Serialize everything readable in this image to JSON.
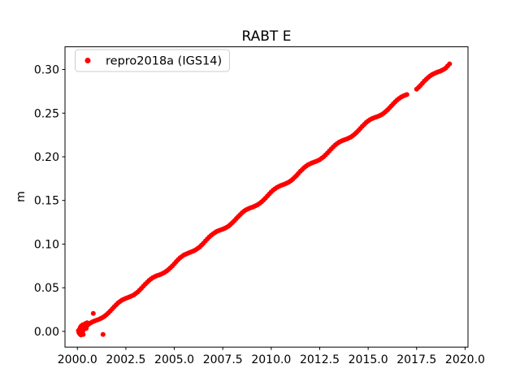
{
  "window": {
    "background": "#ffffff"
  },
  "chart_data": {
    "type": "scatter",
    "title": "RABT E",
    "xlabel": "",
    "ylabel": "m",
    "grid": false,
    "legend_position": "upper left",
    "marker": {
      "shape": "dot",
      "color": "#ff0000",
      "radius_px": 3
    },
    "xlim": [
      1999.36,
      2020.15
    ],
    "ylim": [
      -0.018,
      0.326
    ],
    "xticks": [
      2000.0,
      2002.5,
      2005.0,
      2007.5,
      2010.0,
      2012.5,
      2015.0,
      2017.5,
      2020.0
    ],
    "xtick_labels": [
      "2000.0",
      "2002.5",
      "2005.0",
      "2007.5",
      "2010.0",
      "2012.5",
      "2015.0",
      "2017.5",
      "2020.0"
    ],
    "yticks": [
      0.0,
      0.05,
      0.1,
      0.15,
      0.2,
      0.25,
      0.3
    ],
    "ytick_labels": [
      "0.00",
      "0.05",
      "0.10",
      "0.15",
      "0.20",
      "0.25",
      "0.30"
    ],
    "series": [
      {
        "name": "repro2018a (IGS14)",
        "color": "#ff0000",
        "points": [
          [
            2000.05,
            0.0008
          ],
          [
            2000.08,
            -0.0015
          ],
          [
            2000.1,
            0.0022
          ],
          [
            2000.12,
            -0.0028
          ],
          [
            2000.15,
            0.0045
          ],
          [
            2000.17,
            -0.001
          ],
          [
            2000.18,
            -0.004
          ],
          [
            2000.2,
            0.0062
          ],
          [
            2000.22,
            0.0005
          ],
          [
            2000.25,
            -0.0022
          ],
          [
            2000.28,
            0.0075
          ],
          [
            2000.3,
            -0.0035
          ],
          [
            2000.3,
            0.0012
          ],
          [
            2000.35,
            0.0048
          ],
          [
            2000.4,
            0.0088
          ],
          [
            2000.45,
            0.0035
          ],
          [
            2000.5,
            0.0098
          ],
          [
            2000.82,
            0.0205
          ],
          [
            2001.32,
            -0.0035
          ],
          [
            2000.2,
            0.0
          ],
          [
            2000.3,
            0.0024
          ],
          [
            2000.4,
            0.0046
          ],
          [
            2000.5,
            0.0067
          ],
          [
            2000.6,
            0.0085
          ],
          [
            2000.7,
            0.01
          ],
          [
            2000.8,
            0.0111
          ],
          [
            2000.9,
            0.0121
          ],
          [
            2001.0,
            0.0129
          ],
          [
            2001.1,
            0.0137
          ],
          [
            2001.2,
            0.0148
          ],
          [
            2001.3,
            0.0159
          ],
          [
            2001.4,
            0.0174
          ],
          [
            2001.5,
            0.0191
          ],
          [
            2001.6,
            0.0212
          ],
          [
            2001.7,
            0.0234
          ],
          [
            2001.8,
            0.0258
          ],
          [
            2001.9,
            0.0283
          ],
          [
            2002.0,
            0.0305
          ],
          [
            2002.1,
            0.0326
          ],
          [
            2002.2,
            0.0343
          ],
          [
            2002.3,
            0.0358
          ],
          [
            2002.4,
            0.0369
          ],
          [
            2002.5,
            0.0379
          ],
          [
            2002.6,
            0.0388
          ],
          [
            2002.7,
            0.0396
          ],
          [
            2002.8,
            0.0406
          ],
          [
            2002.9,
            0.0417
          ],
          [
            2003.0,
            0.0432
          ],
          [
            2003.1,
            0.0449
          ],
          [
            2003.2,
            0.0471
          ],
          [
            2003.3,
            0.0493
          ],
          [
            2003.4,
            0.0517
          ],
          [
            2003.5,
            0.0541
          ],
          [
            2003.6,
            0.0563
          ],
          [
            2003.7,
            0.0584
          ],
          [
            2003.8,
            0.0601
          ],
          [
            2003.9,
            0.0617
          ],
          [
            2004.0,
            0.0628
          ],
          [
            2004.1,
            0.0638
          ],
          [
            2004.2,
            0.0646
          ],
          [
            2004.3,
            0.0654
          ],
          [
            2004.4,
            0.0664
          ],
          [
            2004.5,
            0.0675
          ],
          [
            2004.6,
            0.0691
          ],
          [
            2004.7,
            0.0708
          ],
          [
            2004.8,
            0.0729
          ],
          [
            2004.9,
            0.0751
          ],
          [
            2005.0,
            0.0775
          ],
          [
            2005.1,
            0.0799
          ],
          [
            2005.2,
            0.0822
          ],
          [
            2005.3,
            0.0843
          ],
          [
            2005.4,
            0.086
          ],
          [
            2005.5,
            0.0875
          ],
          [
            2005.6,
            0.0886
          ],
          [
            2005.7,
            0.0896
          ],
          [
            2005.8,
            0.0904
          ],
          [
            2005.9,
            0.0913
          ],
          [
            2006.0,
            0.0923
          ],
          [
            2006.1,
            0.0934
          ],
          [
            2006.2,
            0.0949
          ],
          [
            2006.3,
            0.0966
          ],
          [
            2006.4,
            0.0987
          ],
          [
            2006.5,
            0.1009
          ],
          [
            2006.6,
            0.1034
          ],
          [
            2006.7,
            0.1058
          ],
          [
            2006.8,
            0.108
          ],
          [
            2006.9,
            0.1101
          ],
          [
            2007.0,
            0.1118
          ],
          [
            2007.1,
            0.1133
          ],
          [
            2007.2,
            0.1145
          ],
          [
            2007.3,
            0.1155
          ],
          [
            2007.4,
            0.1163
          ],
          [
            2007.5,
            0.1171
          ],
          [
            2007.6,
            0.1181
          ],
          [
            2007.7,
            0.1192
          ],
          [
            2007.8,
            0.1207
          ],
          [
            2007.9,
            0.1225
          ],
          [
            2008.0,
            0.1246
          ],
          [
            2008.1,
            0.1268
          ],
          [
            2008.2,
            0.1292
          ],
          [
            2008.3,
            0.1316
          ],
          [
            2008.4,
            0.1338
          ],
          [
            2008.5,
            0.1359
          ],
          [
            2008.6,
            0.1377
          ],
          [
            2008.7,
            0.1392
          ],
          [
            2008.8,
            0.1403
          ],
          [
            2008.9,
            0.1413
          ],
          [
            2009.0,
            0.1421
          ],
          [
            2009.1,
            0.1429
          ],
          [
            2009.2,
            0.144
          ],
          [
            2009.3,
            0.1451
          ],
          [
            2009.4,
            0.1466
          ],
          [
            2009.5,
            0.1483
          ],
          [
            2009.6,
            0.1504
          ],
          [
            2009.7,
            0.1526
          ],
          [
            2009.8,
            0.155
          ],
          [
            2009.9,
            0.1575
          ],
          [
            2010.0,
            0.1597
          ],
          [
            2010.1,
            0.1618
          ],
          [
            2010.2,
            0.1635
          ],
          [
            2010.3,
            0.165
          ],
          [
            2010.4,
            0.1661
          ],
          [
            2010.5,
            0.1671
          ],
          [
            2010.6,
            0.168
          ],
          [
            2010.7,
            0.1688
          ],
          [
            2010.8,
            0.1698
          ],
          [
            2010.9,
            0.1709
          ],
          [
            2011.0,
            0.1724
          ],
          [
            2011.1,
            0.1741
          ],
          [
            2011.2,
            0.1763
          ],
          [
            2011.3,
            0.1785
          ],
          [
            2011.4,
            0.1809
          ],
          [
            2011.5,
            0.1833
          ],
          [
            2011.6,
            0.1855
          ],
          [
            2011.7,
            0.1876
          ],
          [
            2011.8,
            0.1893
          ],
          [
            2011.9,
            0.1909
          ],
          [
            2012.0,
            0.192
          ],
          [
            2012.1,
            0.193
          ],
          [
            2012.2,
            0.1938
          ],
          [
            2012.3,
            0.1946
          ],
          [
            2012.4,
            0.1956
          ],
          [
            2012.5,
            0.1967
          ],
          [
            2012.6,
            0.1983
          ],
          [
            2012.7,
            0.2
          ],
          [
            2012.8,
            0.2021
          ],
          [
            2012.9,
            0.2043
          ],
          [
            2013.0,
            0.2067
          ],
          [
            2013.1,
            0.2091
          ],
          [
            2013.2,
            0.2114
          ],
          [
            2013.3,
            0.2135
          ],
          [
            2013.4,
            0.2152
          ],
          [
            2013.5,
            0.2167
          ],
          [
            2013.6,
            0.2178
          ],
          [
            2013.7,
            0.2188
          ],
          [
            2013.8,
            0.2196
          ],
          [
            2013.9,
            0.2205
          ],
          [
            2014.0,
            0.2215
          ],
          [
            2014.1,
            0.2226
          ],
          [
            2014.2,
            0.2241
          ],
          [
            2014.3,
            0.2258
          ],
          [
            2014.4,
            0.2279
          ],
          [
            2014.5,
            0.2301
          ],
          [
            2014.6,
            0.2326
          ],
          [
            2014.7,
            0.235
          ],
          [
            2014.8,
            0.2372
          ],
          [
            2014.9,
            0.2393
          ],
          [
            2015.0,
            0.241
          ],
          [
            2015.1,
            0.2425
          ],
          [
            2015.2,
            0.2437
          ],
          [
            2015.3,
            0.2447
          ],
          [
            2015.4,
            0.2455
          ],
          [
            2015.5,
            0.2463
          ],
          [
            2015.6,
            0.2473
          ],
          [
            2015.7,
            0.2484
          ],
          [
            2015.8,
            0.2499
          ],
          [
            2015.9,
            0.2517
          ],
          [
            2016.0,
            0.2538
          ],
          [
            2016.1,
            0.256
          ],
          [
            2016.2,
            0.2584
          ],
          [
            2016.3,
            0.2608
          ],
          [
            2016.4,
            0.263
          ],
          [
            2016.5,
            0.2651
          ],
          [
            2016.6,
            0.2669
          ],
          [
            2016.7,
            0.2684
          ],
          [
            2016.8,
            0.2695
          ],
          [
            2016.9,
            0.2705
          ],
          [
            2017.0,
            0.2713
          ],
          [
            2017.5,
            0.2775
          ],
          [
            2017.6,
            0.2796
          ],
          [
            2017.7,
            0.2818
          ],
          [
            2017.8,
            0.2842
          ],
          [
            2017.9,
            0.2867
          ],
          [
            2018.0,
            0.2889
          ],
          [
            2018.1,
            0.291
          ],
          [
            2018.2,
            0.2927
          ],
          [
            2018.3,
            0.2942
          ],
          [
            2018.4,
            0.2953
          ],
          [
            2018.5,
            0.2963
          ],
          [
            2018.6,
            0.2972
          ],
          [
            2018.7,
            0.298
          ],
          [
            2018.8,
            0.299
          ],
          [
            2018.9,
            0.3001
          ],
          [
            2019.0,
            0.3016
          ],
          [
            2019.1,
            0.304
          ],
          [
            2019.2,
            0.3065
          ]
        ]
      }
    ]
  },
  "legend": {
    "label": "repro2018a (IGS14)",
    "marker_color": "#ff0000",
    "border_color": "#cccccc",
    "background": "#ffffff"
  },
  "axes": {
    "spine_color": "#000000",
    "tick_color": "#000000"
  }
}
